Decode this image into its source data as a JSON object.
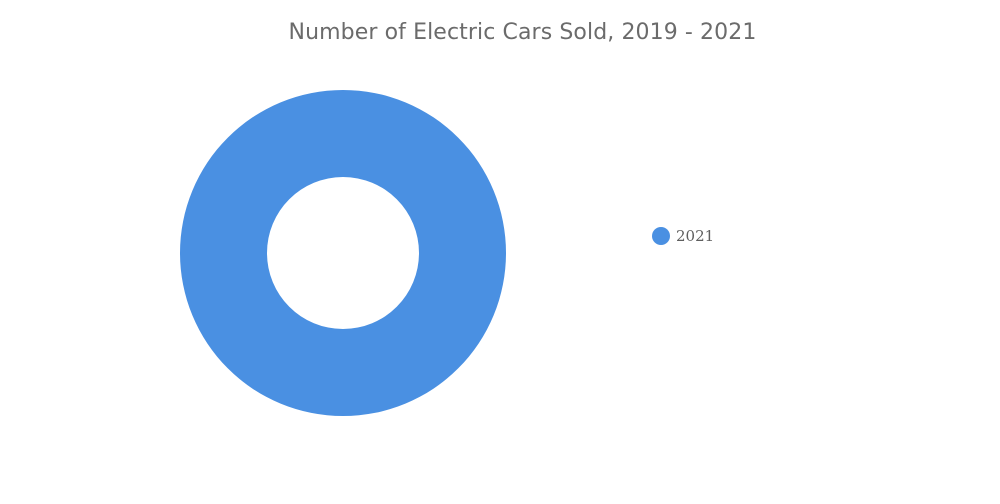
{
  "chart_data": {
    "type": "pie",
    "title": "Number of Electric Cars Sold, 2019 - 2021",
    "donut": true,
    "legend_position": "right",
    "categories": [
      "2021"
    ],
    "values": [
      100
    ],
    "colors": [
      "#4a90e2"
    ]
  }
}
